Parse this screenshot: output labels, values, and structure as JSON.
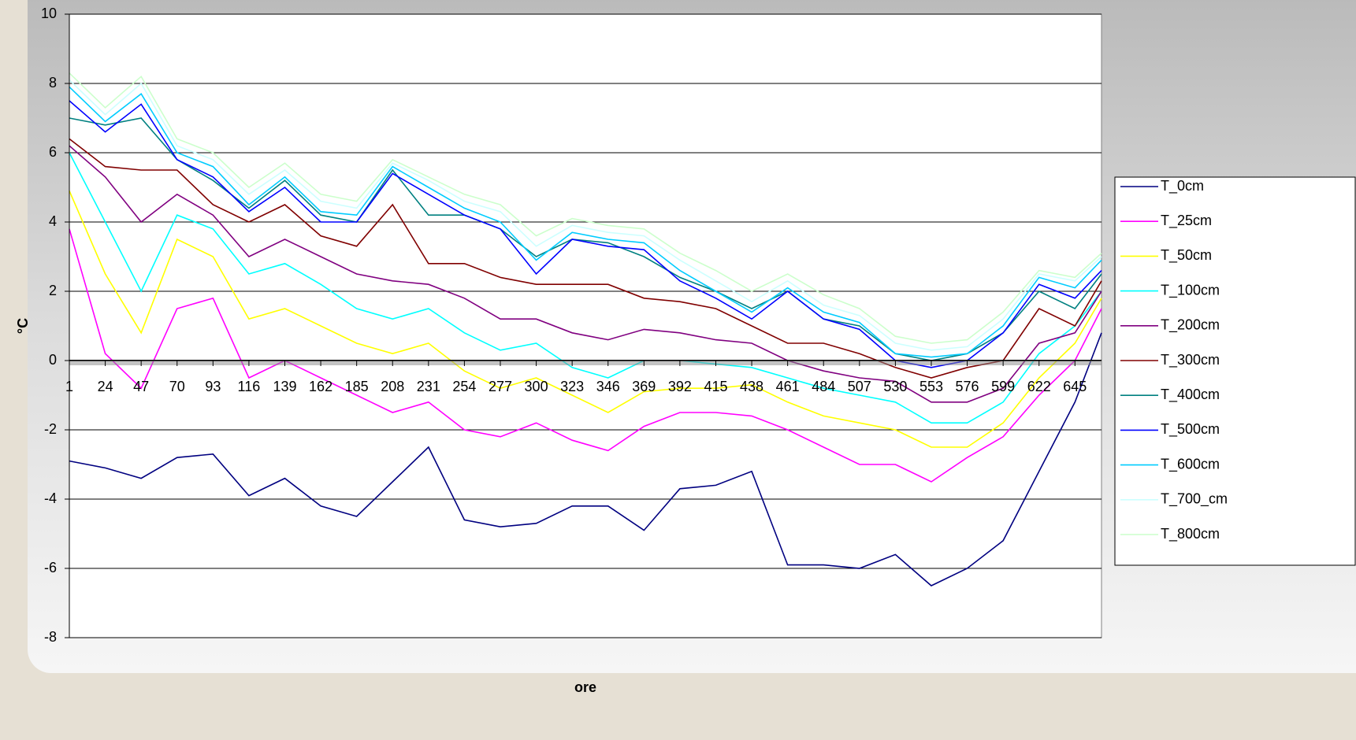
{
  "chart_data": {
    "type": "line",
    "y_label": "°C",
    "x_label": "ore",
    "x": [
      1,
      24,
      47,
      70,
      93,
      116,
      139,
      162,
      185,
      208,
      231,
      254,
      277,
      300,
      323,
      346,
      369,
      392,
      415,
      438,
      461,
      484,
      507,
      530,
      553,
      576,
      599,
      622,
      645,
      662
    ],
    "xlim": [
      1,
      662
    ],
    "xticks": [
      1,
      24,
      47,
      70,
      93,
      116,
      139,
      162,
      185,
      208,
      231,
      254,
      277,
      300,
      323,
      346,
      369,
      392,
      415,
      438,
      461,
      484,
      507,
      530,
      553,
      576,
      599,
      622,
      645
    ],
    "ylim": [
      -8,
      10
    ],
    "yticks": [
      -8,
      -6,
      -4,
      -2,
      0,
      2,
      4,
      6,
      8,
      10
    ],
    "grid": true,
    "legend": "right",
    "series": [
      {
        "name": "T_0cm",
        "color": "#000080",
        "values": [
          -2.9,
          -3.1,
          -3.4,
          -2.8,
          -2.7,
          -3.9,
          -3.4,
          -4.2,
          -4.5,
          -3.5,
          -2.5,
          -4.6,
          -4.8,
          -4.7,
          -4.2,
          -4.2,
          -4.9,
          -3.7,
          -3.6,
          -3.2,
          -5.9,
          -5.9,
          -6.0,
          -5.6,
          -6.5,
          -6.0,
          -5.2,
          -3.2,
          -1.2,
          0.8
        ]
      },
      {
        "name": "T_25cm",
        "color": "#ff00ff",
        "values": [
          3.8,
          0.2,
          -0.8,
          1.5,
          1.8,
          -0.5,
          0.0,
          -0.5,
          -1.0,
          -1.5,
          -1.2,
          -2.0,
          -2.2,
          -1.8,
          -2.3,
          -2.6,
          -1.9,
          -1.5,
          -1.5,
          -1.6,
          -2.0,
          -2.5,
          -3.0,
          -3.0,
          -3.5,
          -2.8,
          -2.2,
          -1.0,
          0.0,
          1.5
        ]
      },
      {
        "name": "T_50cm",
        "color": "#ffff00",
        "values": [
          4.9,
          2.5,
          0.8,
          3.5,
          3.0,
          1.2,
          1.5,
          1.0,
          0.5,
          0.2,
          0.5,
          -0.3,
          -0.8,
          -0.5,
          -1.0,
          -1.5,
          -0.9,
          -0.8,
          -0.8,
          -0.7,
          -1.2,
          -1.6,
          -1.8,
          -2.0,
          -2.5,
          -2.5,
          -1.8,
          -0.5,
          0.5,
          1.8
        ]
      },
      {
        "name": "T_100cm",
        "color": "#00ffff",
        "values": [
          6.0,
          4.0,
          2.0,
          4.2,
          3.8,
          2.5,
          2.8,
          2.2,
          1.5,
          1.2,
          1.5,
          0.8,
          0.3,
          0.5,
          -0.2,
          -0.5,
          0.0,
          0.0,
          -0.1,
          -0.2,
          -0.5,
          -0.8,
          -1.0,
          -1.2,
          -1.8,
          -1.8,
          -1.2,
          0.2,
          1.0,
          2.0
        ]
      },
      {
        "name": "T_200cm",
        "color": "#800080",
        "values": [
          6.2,
          5.3,
          4.0,
          4.8,
          4.2,
          3.0,
          3.5,
          3.0,
          2.5,
          2.3,
          2.2,
          1.8,
          1.2,
          1.2,
          0.8,
          0.6,
          0.9,
          0.8,
          0.6,
          0.5,
          0.0,
          -0.3,
          -0.5,
          -0.6,
          -1.2,
          -1.2,
          -0.8,
          0.5,
          0.8,
          2.0
        ]
      },
      {
        "name": "T_300cm",
        "color": "#800000",
        "values": [
          6.4,
          5.6,
          5.5,
          5.5,
          4.5,
          4.0,
          4.5,
          3.6,
          3.3,
          4.5,
          2.8,
          2.8,
          2.4,
          2.2,
          2.2,
          2.2,
          1.8,
          1.7,
          1.5,
          1.0,
          0.5,
          0.5,
          0.2,
          -0.2,
          -0.5,
          -0.2,
          0.0,
          1.5,
          1.0,
          2.3
        ]
      },
      {
        "name": "T_400cm",
        "color": "#008080",
        "values": [
          7.0,
          6.8,
          7.0,
          5.8,
          5.2,
          4.4,
          5.2,
          4.2,
          4.0,
          5.5,
          4.2,
          4.2,
          3.8,
          3.0,
          3.5,
          3.4,
          3.0,
          2.4,
          2.0,
          1.5,
          2.0,
          1.2,
          1.0,
          0.2,
          0.0,
          0.2,
          0.8,
          2.0,
          1.5,
          2.5
        ]
      },
      {
        "name": "T_500cm",
        "color": "#0000ff",
        "values": [
          7.5,
          6.6,
          7.4,
          5.8,
          5.3,
          4.3,
          5.0,
          4.0,
          4.0,
          5.4,
          4.8,
          4.2,
          3.8,
          2.5,
          3.5,
          3.3,
          3.2,
          2.3,
          1.8,
          1.2,
          2.0,
          1.2,
          0.9,
          0.0,
          -0.2,
          0.0,
          0.8,
          2.2,
          1.8,
          2.6
        ]
      },
      {
        "name": "T_600cm",
        "color": "#00ccff",
        "values": [
          7.9,
          6.9,
          7.7,
          6.0,
          5.6,
          4.5,
          5.3,
          4.3,
          4.2,
          5.6,
          5.0,
          4.4,
          4.0,
          2.9,
          3.7,
          3.5,
          3.4,
          2.6,
          2.0,
          1.4,
          2.1,
          1.4,
          1.1,
          0.2,
          0.1,
          0.2,
          1.0,
          2.4,
          2.1,
          2.9
        ]
      },
      {
        "name": "T_700_cm",
        "color": "#ccffff",
        "values": [
          8.1,
          7.1,
          8.0,
          6.2,
          5.8,
          4.8,
          5.5,
          4.6,
          4.4,
          5.7,
          5.2,
          4.6,
          4.3,
          3.3,
          3.9,
          3.7,
          3.6,
          2.9,
          2.3,
          1.7,
          2.3,
          1.6,
          1.3,
          0.5,
          0.3,
          0.4,
          1.2,
          2.5,
          2.3,
          3.0
        ]
      },
      {
        "name": "T_800cm",
        "color": "#ccffcc",
        "values": [
          8.3,
          7.3,
          8.2,
          6.4,
          6.0,
          5.0,
          5.7,
          4.8,
          4.6,
          5.8,
          5.3,
          4.8,
          4.5,
          3.6,
          4.1,
          3.9,
          3.8,
          3.1,
          2.6,
          2.0,
          2.5,
          1.9,
          1.5,
          0.7,
          0.5,
          0.6,
          1.4,
          2.6,
          2.4,
          3.1
        ]
      }
    ]
  }
}
